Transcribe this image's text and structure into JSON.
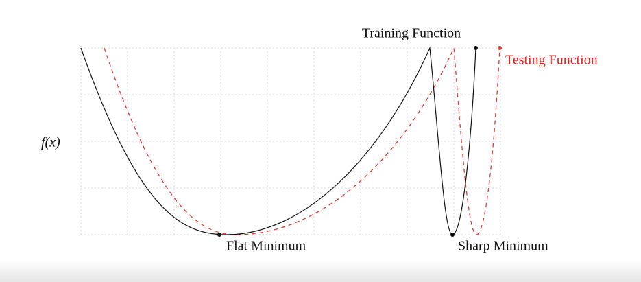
{
  "diagram": {
    "y_label": "f(x)",
    "training_label": "Training Function",
    "testing_label": "Testing Function",
    "flat_label": "Flat Minimum",
    "sharp_label": "Sharp Minimum"
  }
}
